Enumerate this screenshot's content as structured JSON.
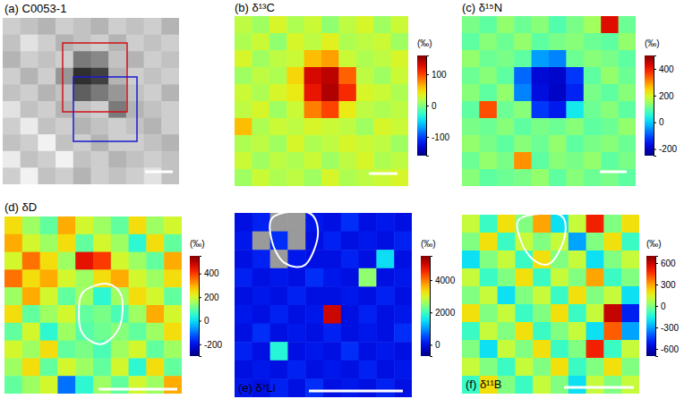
{
  "chart_data": [
    {
      "type": "image",
      "title": "(a) C0053-1",
      "cells": [
        [
          0.3,
          0.35,
          0.4,
          0.3,
          0.35,
          0.4,
          0.3,
          0.35,
          0.3,
          0.4
        ],
        [
          0.35,
          0.2,
          0.3,
          0.4,
          0.35,
          0.3,
          0.4,
          0.3,
          0.35,
          0.3
        ],
        [
          0.4,
          0.3,
          0.35,
          0.3,
          0.6,
          0.55,
          0.35,
          0.4,
          0.3,
          0.35
        ],
        [
          0.3,
          0.4,
          0.3,
          0.5,
          0.85,
          0.8,
          0.4,
          0.3,
          0.35,
          0.3
        ],
        [
          0.35,
          0.3,
          0.4,
          0.35,
          0.7,
          0.6,
          0.5,
          0.35,
          0.3,
          0.4
        ],
        [
          0.2,
          0.35,
          0.3,
          0.4,
          0.35,
          0.3,
          0.6,
          0.4,
          0.35,
          0.3
        ],
        [
          0.3,
          0.15,
          0.35,
          0.3,
          0.4,
          0.35,
          0.3,
          0.35,
          0.4,
          0.3
        ],
        [
          0.35,
          0.3,
          0.1,
          0.35,
          0.3,
          0.4,
          0.3,
          0.3,
          0.35,
          0.4
        ],
        [
          0.15,
          0.35,
          0.3,
          0.1,
          0.35,
          0.3,
          0.4,
          0.35,
          0.3,
          0.35
        ],
        [
          0.3,
          0.1,
          0.35,
          0.3,
          0.4,
          0.3,
          0.35,
          0.3,
          0.2,
          0.35
        ]
      ]
    },
    {
      "type": "heatmap",
      "title": "(b) δ¹³C",
      "cells": [
        [
          20,
          10,
          30,
          15,
          25,
          5,
          20,
          30,
          10,
          25
        ],
        [
          15,
          25,
          5,
          30,
          20,
          35,
          15,
          20,
          25,
          10
        ],
        [
          30,
          10,
          20,
          25,
          60,
          70,
          25,
          15,
          20,
          30
        ],
        [
          10,
          20,
          15,
          50,
          130,
          140,
          90,
          20,
          10,
          25
        ],
        [
          25,
          15,
          30,
          40,
          120,
          145,
          110,
          30,
          25,
          15
        ],
        [
          20,
          30,
          10,
          25,
          80,
          100,
          40,
          20,
          15,
          20
        ],
        [
          60,
          15,
          25,
          20,
          30,
          25,
          20,
          10,
          30,
          25
        ],
        [
          15,
          20,
          10,
          30,
          15,
          20,
          30,
          25,
          20,
          10
        ],
        [
          25,
          10,
          20,
          15,
          25,
          10,
          20,
          30,
          15,
          20
        ],
        [
          10,
          25,
          15,
          20,
          10,
          30,
          15,
          20,
          25,
          30
        ]
      ],
      "colorbar": {
        "label": "(‰)",
        "range": [
          -160,
          160
        ],
        "ticks": [
          -100,
          0,
          100
        ]
      }
    },
    {
      "type": "heatmap",
      "title": "(c) δ¹⁵N",
      "cells": [
        [
          120,
          100,
          140,
          110,
          130,
          90,
          120,
          150,
          420,
          110
        ],
        [
          100,
          130,
          110,
          140,
          100,
          120,
          130,
          110,
          100,
          140
        ],
        [
          140,
          110,
          120,
          100,
          -40,
          -60,
          110,
          130,
          120,
          100
        ],
        [
          110,
          130,
          100,
          -80,
          -180,
          -190,
          -120,
          100,
          140,
          110
        ],
        [
          130,
          100,
          140,
          -60,
          -170,
          -195,
          -140,
          120,
          100,
          130
        ],
        [
          100,
          350,
          110,
          130,
          -120,
          -150,
          30,
          110,
          130,
          100
        ],
        [
          120,
          110,
          130,
          100,
          120,
          110,
          130,
          100,
          110,
          140
        ],
        [
          140,
          120,
          100,
          130,
          110,
          140,
          100,
          120,
          130,
          110
        ],
        [
          110,
          140,
          120,
          300,
          100,
          130,
          120,
          140,
          100,
          120
        ],
        [
          130,
          100,
          110,
          120,
          140,
          100,
          130,
          110,
          120,
          100
        ]
      ],
      "colorbar": {
        "label": "(‰)",
        "range": [
          -250,
          500
        ],
        "ticks": [
          -200,
          0,
          200,
          400
        ]
      }
    },
    {
      "type": "heatmap",
      "title": "(d) δD",
      "cells": [
        [
          250,
          150,
          100,
          300,
          200,
          150,
          100,
          250,
          150,
          200
        ],
        [
          300,
          200,
          150,
          250,
          100,
          200,
          150,
          50,
          250,
          100
        ],
        [
          200,
          350,
          250,
          150,
          450,
          400,
          200,
          150,
          100,
          300
        ],
        [
          350,
          250,
          300,
          200,
          150,
          250,
          300,
          200,
          150,
          250
        ],
        [
          150,
          300,
          200,
          100,
          150,
          50,
          150,
          250,
          200,
          100
        ],
        [
          250,
          100,
          150,
          200,
          100,
          120,
          80,
          150,
          300,
          200
        ],
        [
          100,
          200,
          50,
          150,
          90,
          110,
          130,
          100,
          150,
          250
        ],
        [
          200,
          150,
          250,
          100,
          120,
          80,
          150,
          200,
          100,
          150
        ],
        [
          150,
          250,
          100,
          200,
          150,
          100,
          200,
          50,
          250,
          100
        ],
        [
          100,
          150,
          200,
          -100,
          50,
          150,
          100,
          200,
          150,
          300
        ]
      ],
      "colorbar": {
        "label": "(‰)",
        "range": [
          -300,
          550
        ],
        "ticks": [
          -200,
          0,
          200,
          400
        ]
      }
    },
    {
      "type": "heatmap",
      "title": "(e) δ⁷Li",
      "cells": [
        [
          0,
          200,
          null,
          null,
          100,
          0,
          300,
          0,
          100,
          0
        ],
        [
          100,
          null,
          300,
          null,
          0,
          200,
          0,
          100,
          0,
          200
        ],
        [
          0,
          200,
          null,
          100,
          0,
          0,
          200,
          0,
          1500,
          0
        ],
        [
          200,
          0,
          100,
          0,
          300,
          100,
          0,
          2500,
          0,
          100
        ],
        [
          0,
          100,
          0,
          200,
          0,
          0,
          100,
          0,
          200,
          0
        ],
        [
          100,
          0,
          200,
          0,
          100,
          5000,
          0,
          200,
          0,
          100
        ],
        [
          0,
          300,
          0,
          100,
          0,
          200,
          0,
          100,
          0,
          300
        ],
        [
          200,
          0,
          1800,
          0,
          100,
          0,
          300,
          0,
          100,
          0
        ],
        [
          0,
          100,
          0,
          200,
          0,
          100,
          0,
          200,
          0,
          100
        ],
        [
          100,
          0,
          200,
          0,
          300,
          0,
          100,
          0,
          200,
          0
        ]
      ],
      "colorbar": {
        "label": "(‰)",
        "range": [
          -700,
          5500
        ],
        "ticks": [
          0,
          2000,
          4000
        ]
      }
    },
    {
      "type": "heatmap",
      "title": "(f) δ¹¹B",
      "cells": [
        [
          100,
          -100,
          200,
          0,
          300,
          -200,
          100,
          500,
          0,
          200
        ],
        [
          0,
          200,
          -100,
          100,
          0,
          100,
          -300,
          0,
          200,
          -100
        ],
        [
          -200,
          0,
          100,
          -100,
          200,
          0,
          100,
          -200,
          0,
          100
        ],
        [
          100,
          -100,
          0,
          200,
          -100,
          100,
          0,
          300,
          -100,
          0
        ],
        [
          0,
          100,
          -200,
          0,
          100,
          -100,
          200,
          0,
          100,
          -200
        ],
        [
          200,
          0,
          100,
          -100,
          0,
          200,
          -100,
          100,
          600,
          -500
        ],
        [
          -100,
          100,
          0,
          200,
          -100,
          0,
          100,
          -200,
          400,
          -300
        ],
        [
          0,
          -200,
          100,
          0,
          200,
          -100,
          0,
          500,
          -100,
          100
        ],
        [
          100,
          0,
          -100,
          100,
          0,
          200,
          -100,
          0,
          200,
          0
        ],
        [
          -100,
          200,
          0,
          -100,
          100,
          0,
          -200,
          100,
          0,
          100
        ]
      ],
      "colorbar": {
        "label": "(‰)",
        "range": [
          -700,
          700
        ],
        "ticks": [
          -600,
          -300,
          0,
          300,
          600
        ]
      }
    }
  ]
}
